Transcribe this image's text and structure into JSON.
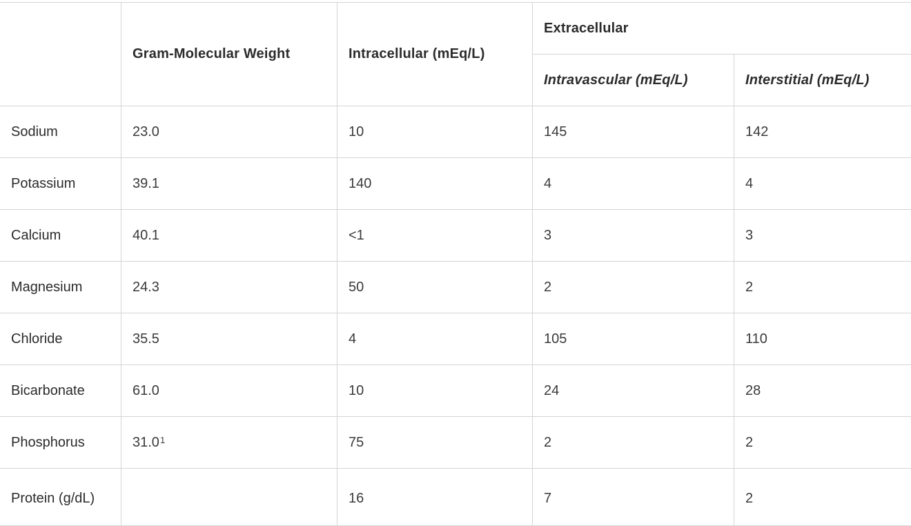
{
  "headers": {
    "corner": "",
    "gram_molecular_weight": "Gram-Molecular Weight",
    "intracellular": "Intracellular (mEq/L)",
    "extracellular": "Extracellular",
    "intravascular": "Intravascular (mEq/L)",
    "interstitial": "Interstitial (mEq/L)"
  },
  "rows": [
    {
      "name": "Sodium",
      "gmw": "23.0",
      "intracellular": "10",
      "intravascular": "145",
      "interstitial": "142"
    },
    {
      "name": "Potassium",
      "gmw": "39.1",
      "intracellular": "140",
      "intravascular": "4",
      "interstitial": "4"
    },
    {
      "name": "Calcium",
      "gmw": "40.1",
      "intracellular": "<1",
      "intravascular": "3",
      "interstitial": "3"
    },
    {
      "name": "Magnesium",
      "gmw": "24.3",
      "intracellular": "50",
      "intravascular": "2",
      "interstitial": "2"
    },
    {
      "name": "Chloride",
      "gmw": "35.5",
      "intracellular": "4",
      "intravascular": "105",
      "interstitial": "110"
    },
    {
      "name": "Bicarbonate",
      "gmw": "61.0",
      "intracellular": "10",
      "intravascular": "24",
      "interstitial": "28"
    },
    {
      "name": "Phosphorus",
      "gmw": "31.0",
      "gmw_footnote": "1",
      "intracellular": "75",
      "intravascular": "2",
      "interstitial": "2"
    },
    {
      "name": "Protein (g/dL)",
      "gmw": "",
      "intracellular": "16",
      "intravascular": "7",
      "interstitial": "2"
    }
  ]
}
